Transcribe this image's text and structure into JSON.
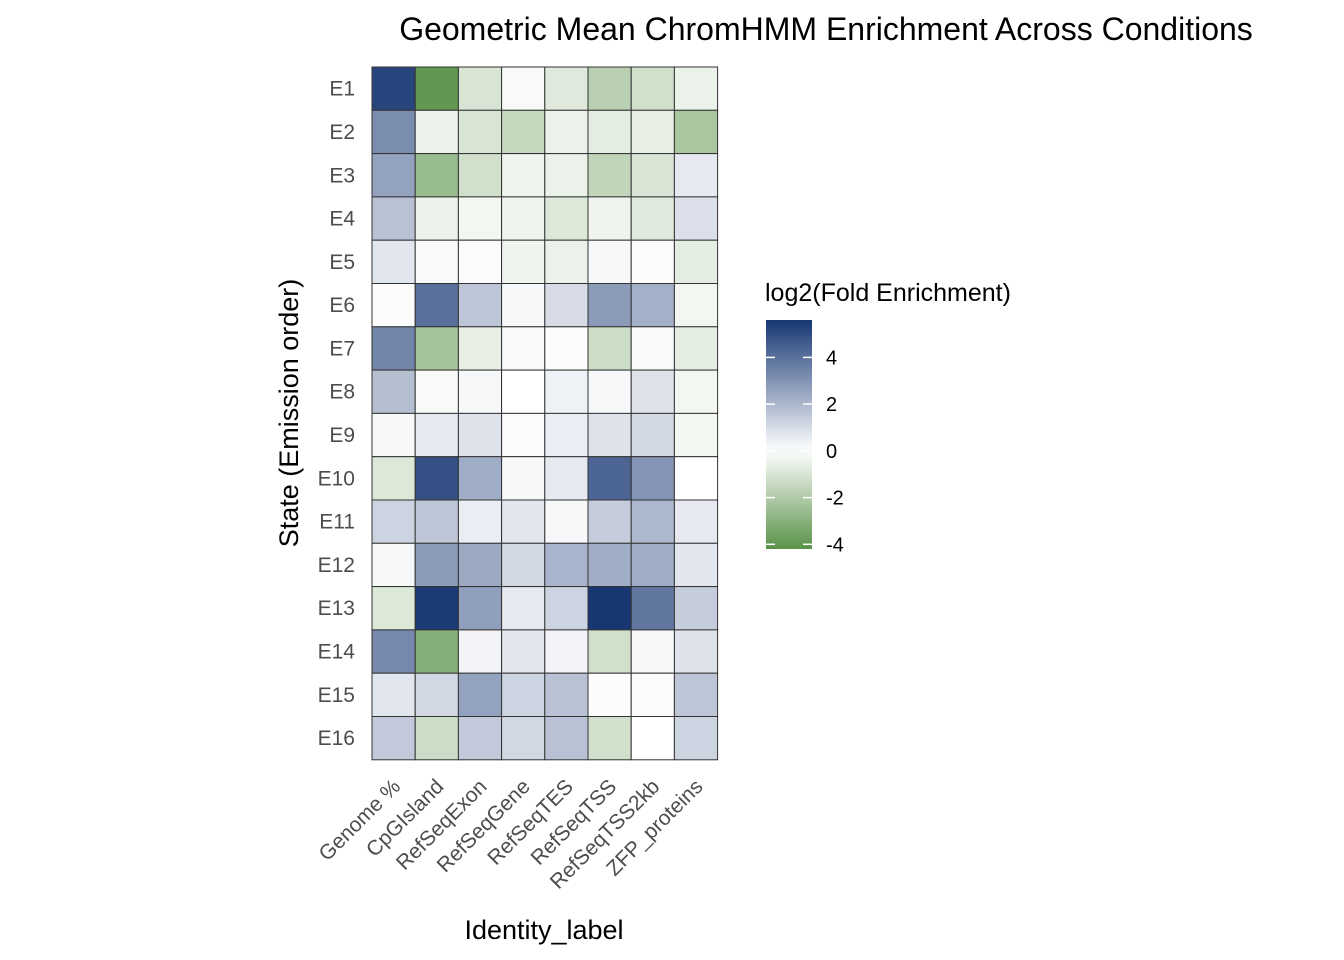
{
  "chart_data": {
    "type": "heatmap",
    "title": "Geometric Mean ChromHMM Enrichment Across Conditions",
    "xlabel": "Identity_label",
    "ylabel": "State (Emission order)",
    "columns": [
      "Genome %",
      "CpGIsland",
      "RefSeqExon",
      "RefSeqGene",
      "RefSeqTES",
      "RefSeqTSS",
      "RefSeqTSS2kb",
      "ZFP_proteins"
    ],
    "rows": [
      "E1",
      "E2",
      "E3",
      "E4",
      "E5",
      "E6",
      "E7",
      "E8",
      "E9",
      "E10",
      "E11",
      "E12",
      "E13",
      "E14",
      "E15",
      "E16"
    ],
    "values": [
      [
        5.2,
        -4.0,
        -1.0,
        -0.2,
        -0.8,
        -1.8,
        -1.2,
        -0.5
      ],
      [
        3.2,
        -0.5,
        -1.0,
        -1.5,
        -0.5,
        -0.7,
        -0.6,
        -2.2
      ],
      [
        2.6,
        -2.6,
        -1.2,
        -0.4,
        -0.5,
        -1.6,
        -1.0,
        0.6
      ],
      [
        1.7,
        -0.5,
        -0.3,
        -0.4,
        -0.9,
        -0.4,
        -0.8,
        0.9
      ],
      [
        0.7,
        -0.2,
        0.1,
        -0.4,
        -0.5,
        0.2,
        -0.1,
        -0.7
      ],
      [
        -0.1,
        4.0,
        1.6,
        0.2,
        1.0,
        2.8,
        2.2,
        -0.3
      ],
      [
        3.4,
        -2.3,
        -0.6,
        -0.2,
        -0.1,
        -1.3,
        -0.2,
        -0.7
      ],
      [
        1.8,
        -0.2,
        0.2,
        0.0,
        0.4,
        0.2,
        0.8,
        -0.3
      ],
      [
        0.2,
        0.6,
        0.8,
        0.1,
        0.5,
        0.8,
        1.1,
        -0.3
      ],
      [
        -0.9,
        4.9,
        2.3,
        0.2,
        0.6,
        4.3,
        3.0,
        0.0
      ],
      [
        1.2,
        1.6,
        0.5,
        0.7,
        0.2,
        1.4,
        2.0,
        0.6
      ],
      [
        0.2,
        2.8,
        2.4,
        1.1,
        2.1,
        2.3,
        2.3,
        0.7
      ],
      [
        -0.9,
        5.5,
        2.7,
        0.6,
        1.2,
        6.0,
        3.8,
        1.4
      ],
      [
        3.3,
        -3.1,
        0.3,
        0.7,
        0.3,
        -1.2,
        0.2,
        0.8
      ],
      [
        0.7,
        1.1,
        2.6,
        1.2,
        1.7,
        -0.1,
        0.1,
        1.6
      ],
      [
        1.5,
        -1.3,
        1.5,
        1.1,
        1.7,
        -1.2,
        0.0,
        1.2
      ]
    ],
    "colorscale": {
      "low": "#5a9249",
      "mid": "#ffffff",
      "high": "#173773",
      "min": -4.2,
      "max": 5.6
    },
    "legend": {
      "title": "log2(Fold Enrichment)",
      "ticks": [
        4,
        2,
        0,
        -2,
        -4
      ],
      "tick_labels": [
        "4",
        "2",
        "0",
        "-2",
        "-4"
      ],
      "position": "right"
    }
  }
}
